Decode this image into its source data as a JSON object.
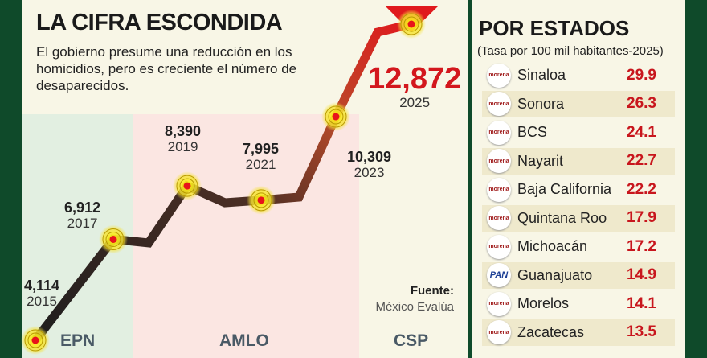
{
  "header": {
    "title": "LA CIFRA ESCONDIDA",
    "subtitle": "El gobierno presume una reducción en los homicidios, pero es creciente el número de desaparecidos."
  },
  "source": {
    "label": "Fuente:",
    "name": "México Evalúa"
  },
  "chart_data": {
    "type": "line",
    "title": "LA CIFRA ESCONDIDA",
    "x": [
      2015,
      2017,
      2019,
      2021,
      2023,
      2025
    ],
    "values": [
      4114,
      6912,
      8390,
      7995,
      10309,
      12872
    ],
    "value_labels": [
      "4,114",
      "6,912",
      "8,390",
      "7,995",
      "10,309",
      "12,872"
    ],
    "year_labels": [
      "2015",
      "2017",
      "2019",
      "2021",
      "2023",
      "2025"
    ],
    "periods": [
      {
        "name": "EPN",
        "color": "#e2efe1"
      },
      {
        "name": "AMLO",
        "color": "#fbe6e2"
      },
      {
        "name": "CSP",
        "color": "#f8f6e6"
      }
    ]
  },
  "states": {
    "title": "POR ESTADOS",
    "subtitle": "(Tasa por 100 mil habitantes-2025)",
    "rows": [
      {
        "party": "morena",
        "name": "Sinaloa",
        "rate": "29.9"
      },
      {
        "party": "morena",
        "name": "Sonora",
        "rate": "26.3"
      },
      {
        "party": "morena",
        "name": "BCS",
        "rate": "24.1"
      },
      {
        "party": "morena",
        "name": "Nayarit",
        "rate": "22.7"
      },
      {
        "party": "morena",
        "name": "Baja California",
        "rate": "22.2"
      },
      {
        "party": "morena",
        "name": "Quintana Roo",
        "rate": "17.9"
      },
      {
        "party": "morena",
        "name": "Michoacán",
        "rate": "17.2"
      },
      {
        "party": "PAN",
        "name": "Guanajuato",
        "rate": "14.9"
      },
      {
        "party": "morena",
        "name": "Morelos",
        "rate": "14.1"
      },
      {
        "party": "morena",
        "name": "Zacatecas",
        "rate": "13.5"
      }
    ]
  }
}
